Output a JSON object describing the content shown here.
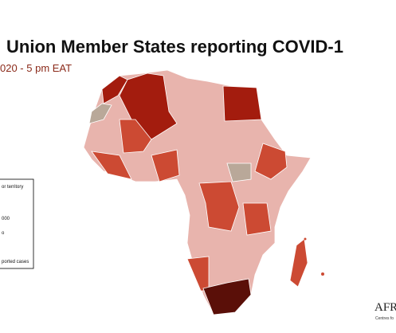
{
  "header": {
    "title": "Union Member States reporting COVID-1",
    "subtitle": "020 - 5 pm EAT"
  },
  "legend": {
    "items": [
      "or territory",
      "000",
      "o",
      "ported cases"
    ]
  },
  "logo": {
    "text": "AFR",
    "subtext": "Centres fo"
  }
}
